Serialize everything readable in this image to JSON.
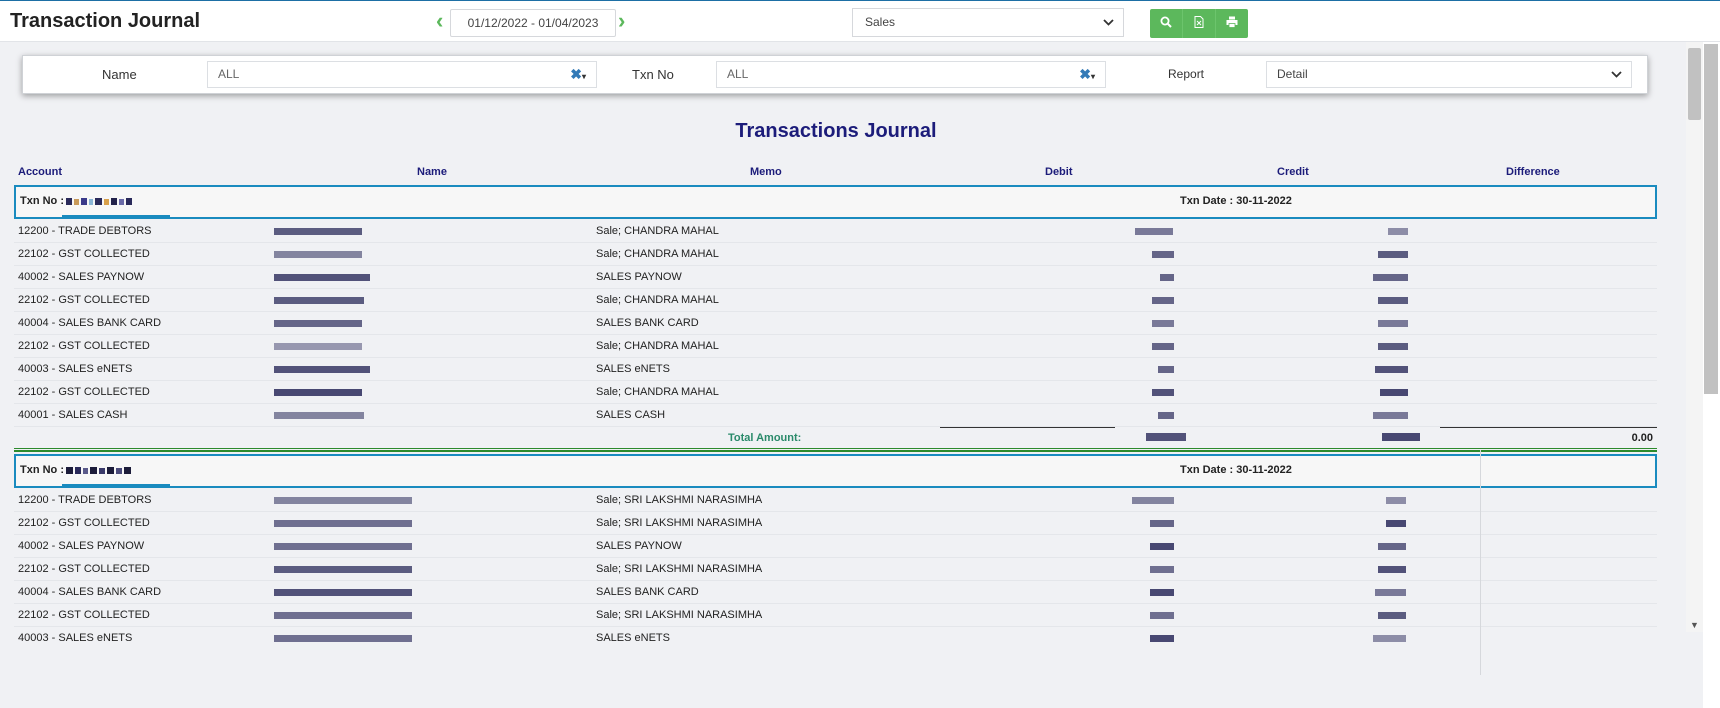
{
  "header": {
    "title": "Transaction Journal",
    "date_range": "01/12/2022 - 01/04/2023",
    "report_type": "Sales",
    "prev_icon": "chevron-left-icon",
    "next_icon": "chevron-right-icon",
    "buttons": [
      "search-icon",
      "excel-export-icon",
      "print-icon"
    ],
    "accent_color": "#5cb85c"
  },
  "filters": {
    "name_label": "Name",
    "name_value": "ALL",
    "txn_label": "Txn No",
    "txn_value": "ALL",
    "report_label": "Report",
    "report_value": "Detail"
  },
  "report": {
    "title": "Transactions Journal",
    "columns": [
      "Account",
      "Name",
      "Memo",
      "Debit",
      "Credit",
      "Difference"
    ],
    "transactions": [
      {
        "txn_label": "Txn No :",
        "txn_date": "Txn Date : 30-11-2022",
        "rows": [
          {
            "account": "12200 - TRADE DEBTORS",
            "memo": "Sale; CHANDRA MAHAL"
          },
          {
            "account": "22102 - GST COLLECTED",
            "memo": "Sale; CHANDRA MAHAL"
          },
          {
            "account": "40002 - SALES PAYNOW",
            "memo": "SALES PAYNOW"
          },
          {
            "account": "22102 - GST COLLECTED",
            "memo": "Sale; CHANDRA MAHAL"
          },
          {
            "account": "40004 - SALES BANK CARD",
            "memo": "SALES BANK CARD"
          },
          {
            "account": "22102 - GST COLLECTED",
            "memo": "Sale; CHANDRA MAHAL"
          },
          {
            "account": "40003 - SALES eNETS",
            "memo": "SALES eNETS"
          },
          {
            "account": "22102 - GST COLLECTED",
            "memo": "Sale; CHANDRA MAHAL"
          },
          {
            "account": "40001 - SALES CASH",
            "memo": "SALES CASH"
          }
        ],
        "total_label": "Total Amount:",
        "difference": "0.00"
      },
      {
        "txn_label": "Txn No :",
        "txn_date": "Txn Date : 30-11-2022",
        "rows": [
          {
            "account": "12200 - TRADE DEBTORS",
            "memo": "Sale; SRI LAKSHMI NARASIMHA"
          },
          {
            "account": "22102 - GST COLLECTED",
            "memo": "Sale; SRI LAKSHMI NARASIMHA"
          },
          {
            "account": "40002 - SALES PAYNOW",
            "memo": "SALES PAYNOW"
          },
          {
            "account": "22102 - GST COLLECTED",
            "memo": "Sale; SRI LAKSHMI NARASIMHA"
          },
          {
            "account": "40004 - SALES BANK CARD",
            "memo": "SALES BANK CARD"
          },
          {
            "account": "22102 - GST COLLECTED",
            "memo": "Sale; SRI LAKSHMI NARASIMHA"
          },
          {
            "account": "40003 - SALES eNETS",
            "memo": "SALES eNETS"
          }
        ]
      }
    ]
  }
}
